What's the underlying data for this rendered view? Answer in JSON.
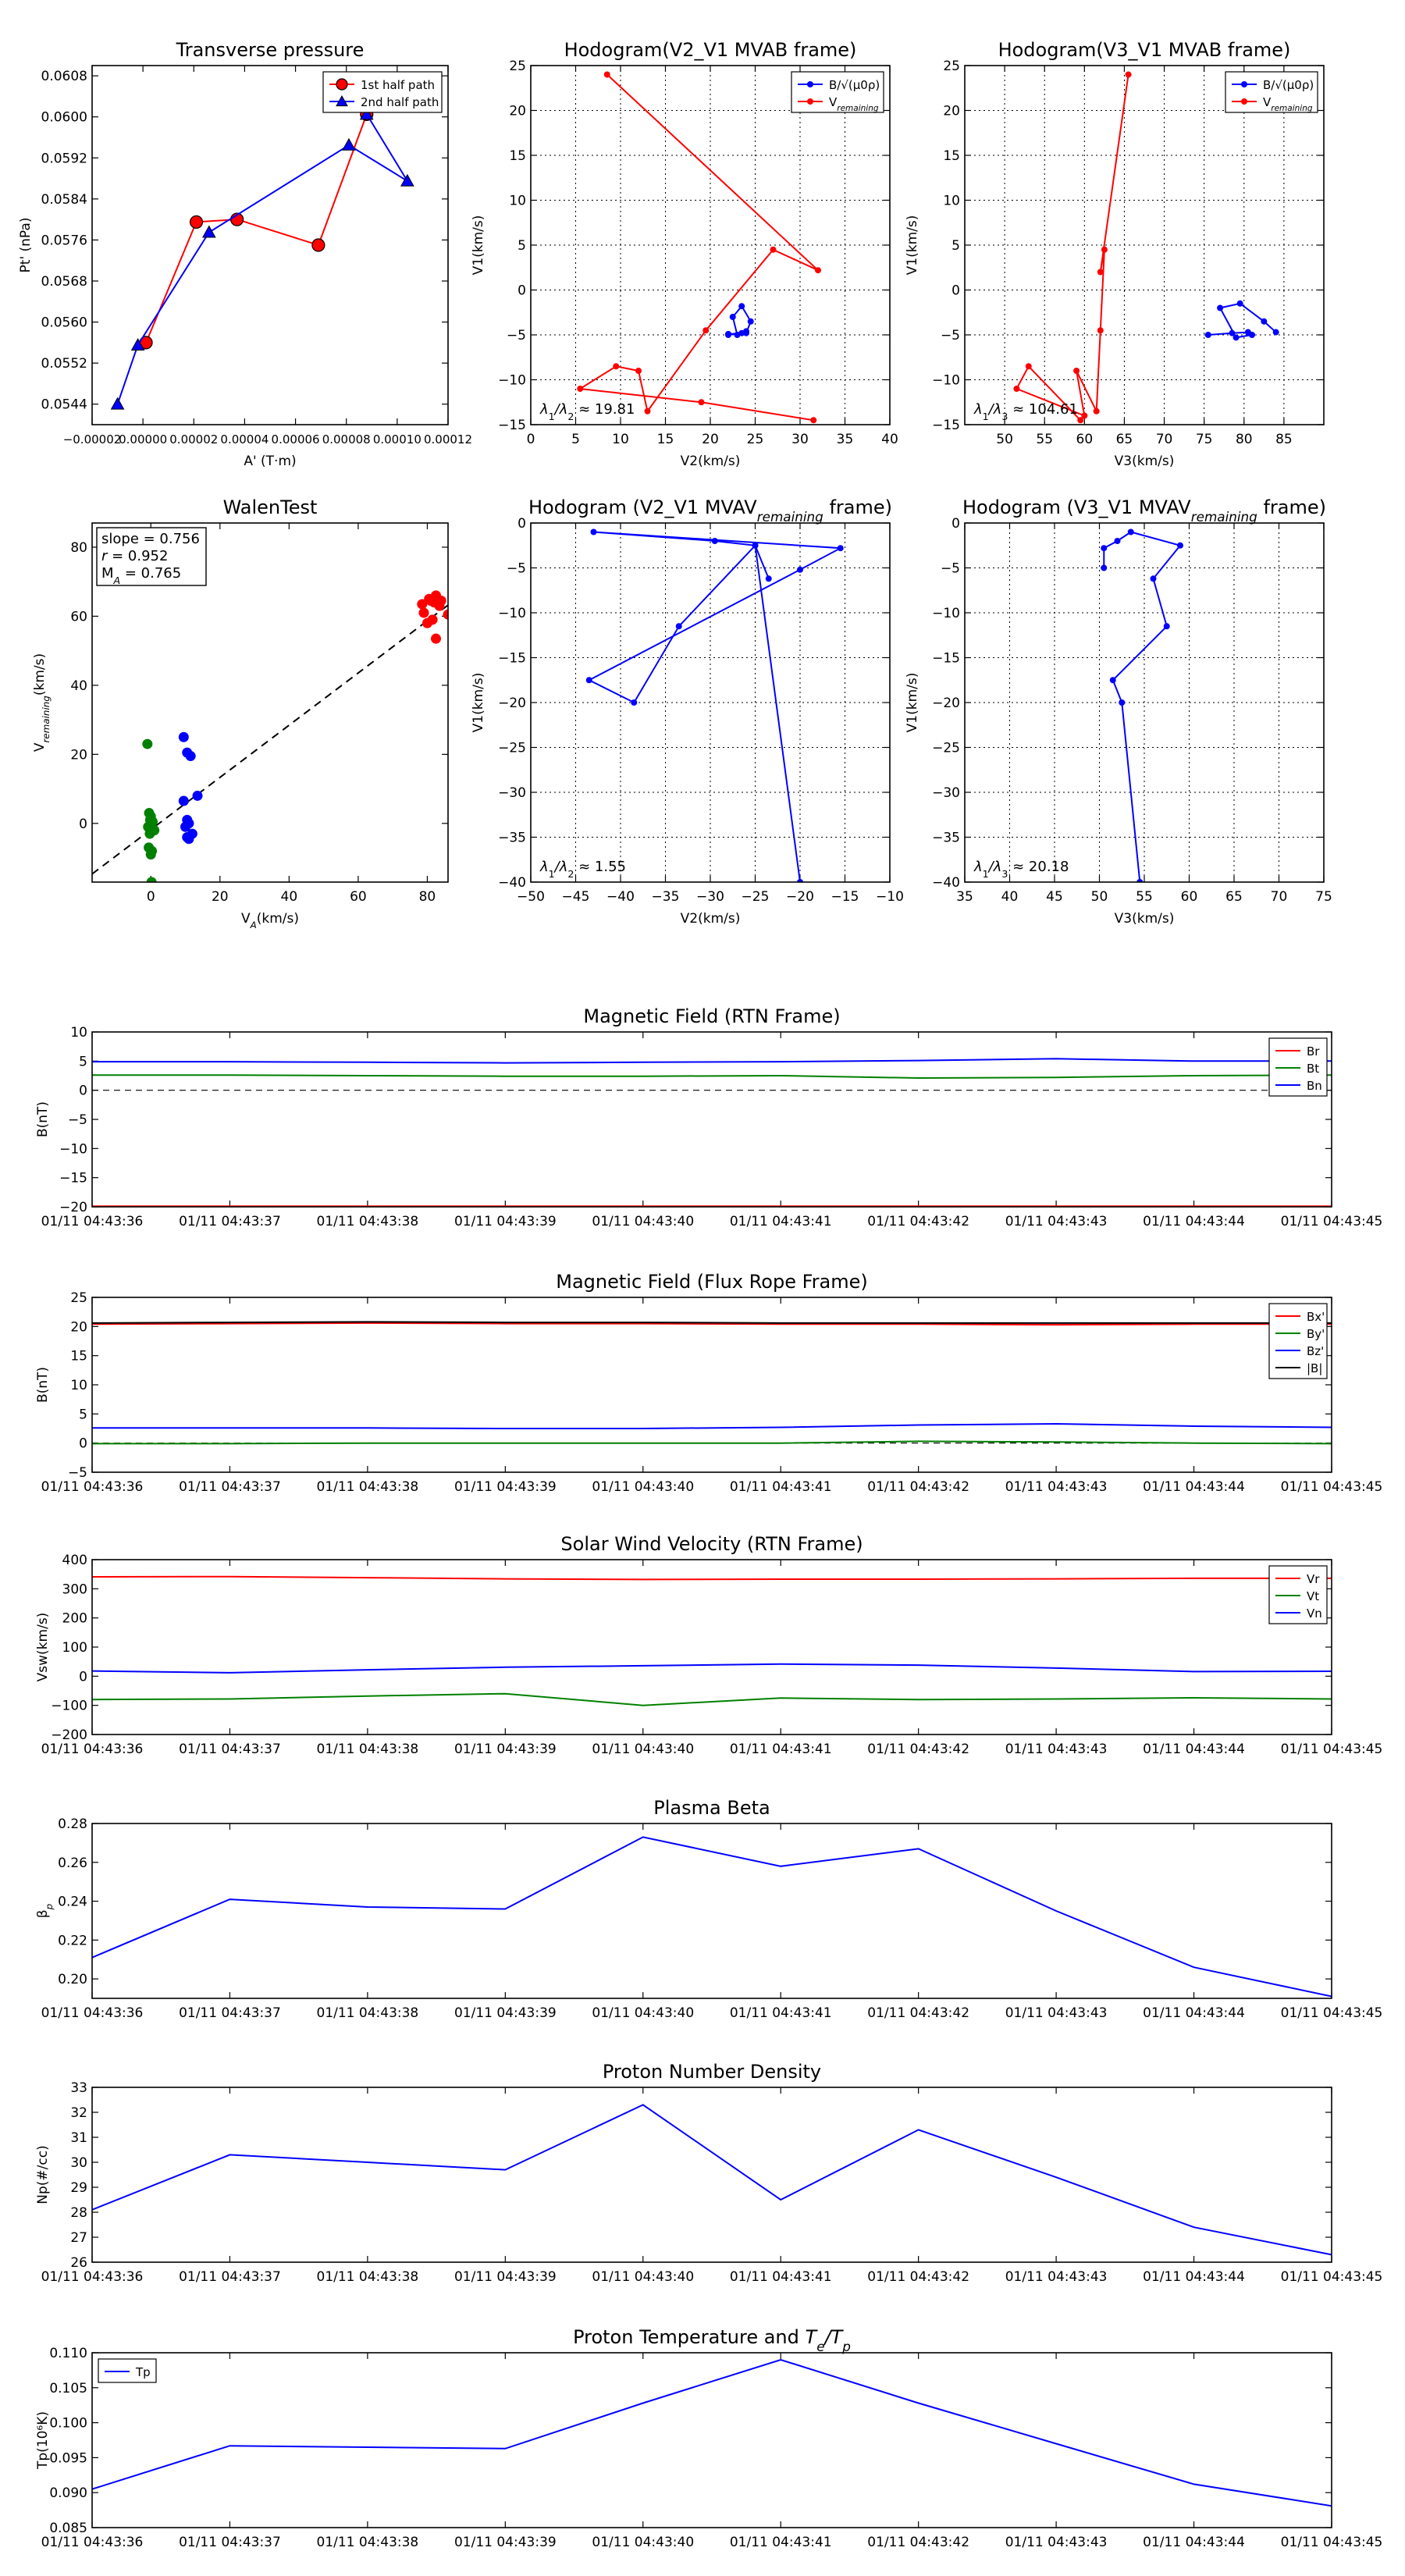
{
  "panel_labels": {
    "lambda12": "λ₁/λ₂ ≈",
    "lambda13": "λ₁/λ₃ ≈",
    "slope": "slope =",
    "r": "r =",
    "ma": "M_A ="
  },
  "time_labels": [
    "01/11 04:43:36",
    "01/11 04:43:37",
    "01/11 04:43:38",
    "01/11 04:43:39",
    "01/11 04:43:40",
    "01/11 04:43:41",
    "01/11 04:43:42",
    "01/11 04:43:43",
    "01/11 04:43:44",
    "01/11 04:43:45"
  ],
  "colors": {
    "red": "#ff0000",
    "green": "#008000",
    "blue": "#0000ff",
    "black": "#000000"
  },
  "chart_data": [
    {
      "id": "transverse_pressure",
      "type": "line",
      "title": "Transverse pressure",
      "xlabel": "A' (T·m)",
      "ylabel": "Pt' (nPa)",
      "xlim": [
        -2e-05,
        0.00012
      ],
      "ylim": [
        0.054,
        0.061
      ],
      "xticks": [
        -2e-05,
        0,
        2e-05,
        4e-05,
        6e-05,
        8e-05,
        0.0001,
        0.00012
      ],
      "xtick_labels": [
        "−0.00002",
        "0.00000",
        "0.00002",
        "0.00004",
        "0.00006",
        "0.00008",
        "0.00010",
        "0.00012"
      ],
      "yticks": [
        0.0544,
        0.0552,
        0.056,
        0.0568,
        0.0576,
        0.0584,
        0.0592,
        0.06,
        0.0608
      ],
      "ytick_labels": [
        "0.0544",
        "0.0552",
        "0.0560",
        "0.0568",
        "0.0576",
        "0.0584",
        "0.0592",
        "0.0600",
        "0.0608"
      ],
      "legend": "top-right",
      "series": [
        {
          "name": "1st half path",
          "color": "red",
          "marker": "circle",
          "x": [
            1.2e-06,
            2.1e-05,
            3.7e-05,
            6.9e-05,
            8.8e-05
          ],
          "y": [
            0.0556,
            0.05795,
            0.058,
            0.0575,
            0.06005
          ]
        },
        {
          "name": "2nd half path",
          "color": "blue",
          "marker": "triangle",
          "x": [
            8.8e-05,
            0.000104,
            8.1e-05,
            2.6e-05,
            -2e-06,
            -1e-05
          ],
          "y": [
            0.06005,
            0.05875,
            0.05945,
            0.05775,
            0.05555,
            0.0544
          ]
        }
      ]
    },
    {
      "id": "hodo_v2v1_mvab",
      "type": "line",
      "title": "Hodogram(V2_V1 MVAB frame)",
      "xlabel": "V2(km/s)",
      "ylabel": "V1(km/s)",
      "xlim": [
        0,
        40
      ],
      "ylim": [
        -15,
        25
      ],
      "xticks": [
        0,
        5,
        10,
        15,
        20,
        25,
        30,
        35,
        40
      ],
      "yticks": [
        -15,
        -10,
        -5,
        0,
        5,
        10,
        15,
        20,
        25
      ],
      "grid": true,
      "legend": "top-right",
      "annotation": {
        "label_key": "lambda12",
        "value": "19.81"
      },
      "series": [
        {
          "name": "B/√(μ0ρ)",
          "color": "blue",
          "x": [
            22.0,
            23.5,
            24.0,
            23.0,
            22.5,
            23.5,
            24.5,
            24.0,
            22.0
          ],
          "y": [
            -5.0,
            -4.8,
            -4.6,
            -5.0,
            -3.0,
            -1.8,
            -3.5,
            -4.8,
            -4.9
          ]
        },
        {
          "name": "V_remaining",
          "color": "red",
          "x": [
            8.5,
            32.0,
            27.0,
            19.5,
            13.0,
            12.0,
            9.5,
            5.5,
            19.0,
            31.5
          ],
          "y": [
            24.0,
            2.2,
            4.5,
            -4.5,
            -13.5,
            -9.0,
            -8.5,
            -11.0,
            -12.5,
            -14.5
          ]
        }
      ]
    },
    {
      "id": "hodo_v3v1_mvab",
      "type": "line",
      "title": "Hodogram(V3_V1 MVAB frame)",
      "xlabel": "V3(km/s)",
      "ylabel": "V1(km/s)",
      "xlim": [
        45,
        90
      ],
      "ylim": [
        -15,
        25
      ],
      "xticks": [
        50,
        55,
        60,
        65,
        70,
        75,
        80,
        85
      ],
      "yticks": [
        -15,
        -10,
        -5,
        0,
        5,
        10,
        15,
        20,
        25
      ],
      "grid": true,
      "legend": "top-right",
      "annotation": {
        "label_key": "lambda13",
        "value": "104.61"
      },
      "series": [
        {
          "name": "B/√(μ0ρ)",
          "color": "blue",
          "x": [
            75.5,
            78.5,
            80.5,
            81.0,
            79.0,
            77.0,
            79.5,
            82.5,
            84.0
          ],
          "y": [
            -5.0,
            -4.8,
            -4.7,
            -5.0,
            -5.3,
            -2.0,
            -1.5,
            -3.5,
            -4.7
          ]
        },
        {
          "name": "V_remaining",
          "color": "red",
          "x": [
            65.5,
            62.0,
            62.5,
            62.0,
            61.5,
            59.0,
            60.0,
            51.5,
            53.0,
            59.5
          ],
          "y": [
            24.0,
            2.0,
            4.5,
            -4.5,
            -13.5,
            -9.0,
            -14.0,
            -11.0,
            -8.5,
            -14.5
          ]
        }
      ]
    },
    {
      "id": "walen_test",
      "type": "scatter",
      "title": "WalenTest",
      "xlabel": "V_A(km/s)",
      "ylabel": "V_remaining(km/s)",
      "xlim": [
        -17,
        86
      ],
      "ylim": [
        -17,
        87
      ],
      "xticks": [
        0,
        20,
        40,
        60,
        80
      ],
      "yticks": [
        0,
        20,
        40,
        60,
        80
      ],
      "stats": {
        "slope": "0.756",
        "r": "0.952",
        "ma": "0.765"
      },
      "fit_line": {
        "slope": 0.756,
        "intercept": -1.8
      },
      "series": [
        {
          "name": "red",
          "color": "red",
          "x": [
            78.5,
            80.5,
            81.0,
            82.5,
            82.0,
            83.5,
            84.0,
            86.0,
            80.0,
            81.5,
            82.5,
            79.0
          ],
          "y": [
            63.5,
            65.0,
            64.5,
            66.0,
            64.0,
            63.0,
            64.5,
            60.5,
            58.0,
            59.0,
            53.5,
            61.0
          ]
        },
        {
          "name": "green",
          "color": "green",
          "x": [
            -1.0,
            -0.5,
            0.0,
            0.5,
            -0.8,
            1.0,
            -0.3,
            0.3,
            0.0,
            -0.6,
            0.5,
            -0.2,
            0.2
          ],
          "y": [
            23.0,
            3.0,
            2.0,
            0.5,
            -1.0,
            -2.0,
            -3.0,
            -8.0,
            -9.0,
            -7.0,
            -1.5,
            1.0,
            -17.0
          ]
        },
        {
          "name": "blue",
          "color": "blue",
          "x": [
            9.5,
            10.5,
            11.5,
            13.5,
            9.5,
            10.5,
            11.0,
            10.0,
            10.5,
            11.0,
            12.0
          ],
          "y": [
            25.0,
            20.5,
            19.5,
            8.0,
            6.5,
            1.0,
            0.0,
            -1.0,
            -4.0,
            -4.5,
            -3.0
          ]
        }
      ]
    },
    {
      "id": "hodo_v2v1_mvav",
      "type": "line",
      "title": "Hodogram (V2_V1 MVAV_remaining frame)",
      "xlabel": "V2(km/s)",
      "ylabel": "V1(km/s)",
      "xlim": [
        -50,
        -10
      ],
      "ylim": [
        -40,
        0
      ],
      "xticks": [
        -50,
        -45,
        -40,
        -35,
        -30,
        -25,
        -20,
        -15,
        -10
      ],
      "yticks": [
        -40,
        -35,
        -30,
        -25,
        -20,
        -15,
        -10,
        -5,
        0
      ],
      "grid": true,
      "annotation": {
        "label_key": "lambda12",
        "value": "1.55"
      },
      "series": [
        {
          "name": "V",
          "color": "blue",
          "x": [
            -23.5,
            -25.0,
            -29.5,
            -43.0,
            -15.5,
            -20.0,
            -43.5,
            -38.5,
            -33.5,
            -25.0,
            -20.0
          ],
          "y": [
            -6.2,
            -2.5,
            -2.0,
            -1.0,
            -2.8,
            -5.2,
            -17.5,
            -20.0,
            -11.5,
            -2.5,
            -40.0
          ]
        }
      ]
    },
    {
      "id": "hodo_v3v1_mvav",
      "type": "line",
      "title": "Hodogram (V3_V1 MVAV_remaining frame)",
      "xlabel": "V3(km/s)",
      "ylabel": "V1(km/s)",
      "xlim": [
        35,
        75
      ],
      "ylim": [
        -40,
        0
      ],
      "xticks": [
        35,
        40,
        45,
        50,
        55,
        60,
        65,
        70,
        75
      ],
      "yticks": [
        -40,
        -35,
        -30,
        -25,
        -20,
        -15,
        -10,
        -5,
        0
      ],
      "grid": true,
      "annotation": {
        "label_key": "lambda13",
        "value": "20.18"
      },
      "series": [
        {
          "name": "V",
          "color": "blue",
          "x": [
            50.5,
            50.5,
            52.0,
            53.5,
            59.0,
            56.0,
            57.5,
            51.5,
            52.5,
            54.5
          ],
          "y": [
            -5.0,
            -2.8,
            -2.0,
            -1.0,
            -2.5,
            -6.2,
            -11.5,
            -17.5,
            -20.0,
            -40.0
          ]
        }
      ]
    },
    {
      "id": "mag_rtn",
      "type": "line",
      "title": "Magnetic Field (RTN Frame)",
      "ylabel": "B(nT)",
      "ylim": [
        -20,
        10
      ],
      "yticks": [
        -20,
        -15,
        -10,
        -5,
        0,
        5,
        10
      ],
      "zero_line": true,
      "legend": "top-right",
      "x": [
        0,
        1,
        2,
        3,
        4,
        5,
        6,
        7,
        8,
        9
      ],
      "series": [
        {
          "name": "Br",
          "color": "red",
          "values": [
            -19.9,
            -19.9,
            -19.9,
            -19.9,
            -19.9,
            -19.9,
            -19.9,
            -19.9,
            -19.9,
            -19.9
          ]
        },
        {
          "name": "Bt",
          "color": "green",
          "values": [
            2.6,
            2.6,
            2.5,
            2.4,
            2.4,
            2.5,
            2.1,
            2.2,
            2.5,
            2.6
          ]
        },
        {
          "name": "Bn",
          "color": "blue",
          "values": [
            4.9,
            4.9,
            4.8,
            4.7,
            4.8,
            4.9,
            5.1,
            5.4,
            5.0,
            5.0
          ]
        }
      ]
    },
    {
      "id": "mag_fr",
      "type": "line",
      "title": "Magnetic Field (Flux Rope Frame)",
      "ylabel": "B(nT)",
      "ylim": [
        -5,
        25
      ],
      "yticks": [
        -5,
        0,
        5,
        10,
        15,
        20,
        25
      ],
      "zero_line": true,
      "legend": "top-right",
      "x": [
        0,
        1,
        2,
        3,
        4,
        5,
        6,
        7,
        8,
        9
      ],
      "series": [
        {
          "name": "Bx'",
          "color": "red",
          "values": [
            20.4,
            20.5,
            20.6,
            20.5,
            20.5,
            20.4,
            20.4,
            20.3,
            20.4,
            20.4
          ]
        },
        {
          "name": "By'",
          "color": "green",
          "values": [
            -0.1,
            -0.1,
            0.0,
            0.0,
            0.0,
            0.0,
            0.3,
            0.2,
            0.0,
            -0.1
          ]
        },
        {
          "name": "Bz'",
          "color": "blue",
          "values": [
            2.6,
            2.6,
            2.6,
            2.5,
            2.5,
            2.7,
            3.1,
            3.3,
            2.9,
            2.7
          ]
        },
        {
          "name": "|B|",
          "color": "black",
          "values": [
            20.6,
            20.7,
            20.8,
            20.7,
            20.7,
            20.6,
            20.6,
            20.6,
            20.6,
            20.6
          ]
        }
      ]
    },
    {
      "id": "sw_vel",
      "type": "line",
      "title": "Solar Wind Velocity (RTN Frame)",
      "ylabel": "Vsw(km/s)",
      "ylim": [
        -200,
        400
      ],
      "yticks": [
        -200,
        -100,
        0,
        100,
        200,
        300,
        400
      ],
      "legend": "top-right",
      "x": [
        0,
        1,
        2,
        3,
        4,
        5,
        6,
        7,
        8,
        9
      ],
      "series": [
        {
          "name": "Vr",
          "color": "red",
          "values": [
            341,
            342,
            338,
            334,
            332,
            333,
            333,
            334,
            336,
            336
          ]
        },
        {
          "name": "Vt",
          "color": "green",
          "values": [
            -80,
            -78,
            -68,
            -60,
            -100,
            -75,
            -80,
            -78,
            -74,
            -78
          ]
        },
        {
          "name": "Vn",
          "color": "blue",
          "values": [
            18,
            12,
            22,
            31,
            36,
            42,
            38,
            28,
            16,
            17
          ]
        }
      ]
    },
    {
      "id": "plasma_beta",
      "type": "line",
      "title": "Plasma Beta",
      "ylabel": "β_p",
      "ylim": [
        0.19,
        0.28
      ],
      "yticks": [
        0.2,
        0.22,
        0.24,
        0.26,
        0.28
      ],
      "ytick_labels": [
        "0.20",
        "0.22",
        "0.24",
        "0.26",
        "0.28"
      ],
      "x": [
        0,
        1,
        2,
        3,
        4,
        5,
        6,
        7,
        8,
        9
      ],
      "series": [
        {
          "name": "beta",
          "color": "blue",
          "values": [
            0.211,
            0.241,
            0.237,
            0.236,
            0.273,
            0.258,
            0.267,
            0.235,
            0.206,
            0.191
          ]
        }
      ]
    },
    {
      "id": "proton_density",
      "type": "line",
      "title": "Proton Number Density",
      "ylabel": "Np(#/cc)",
      "ylim": [
        26,
        33
      ],
      "yticks": [
        26,
        27,
        28,
        29,
        30,
        31,
        32,
        33
      ],
      "x": [
        0,
        1,
        2,
        3,
        4,
        5,
        6,
        7,
        8,
        9
      ],
      "series": [
        {
          "name": "Np",
          "color": "blue",
          "values": [
            28.1,
            30.3,
            30.0,
            29.7,
            32.3,
            28.5,
            31.3,
            29.4,
            27.4,
            26.3
          ]
        }
      ]
    },
    {
      "id": "proton_temp",
      "type": "line",
      "title": "Proton Temperature and Te/Tp",
      "ylabel": "Tp(10⁶K)",
      "ylim": [
        0.085,
        0.11
      ],
      "yticks": [
        0.085,
        0.09,
        0.095,
        0.1,
        0.105,
        0.11
      ],
      "ytick_labels": [
        "0.085",
        "0.090",
        "0.095",
        "0.100",
        "0.105",
        "0.110"
      ],
      "legend": "top-left",
      "x": [
        0,
        1,
        2,
        3,
        4,
        5,
        6,
        7,
        8,
        9
      ],
      "series": [
        {
          "name": "Tp",
          "color": "blue",
          "values": [
            0.0905,
            0.0967,
            0.0965,
            0.0963,
            0.1028,
            0.109,
            0.1028,
            0.097,
            0.0912,
            0.0881
          ]
        }
      ]
    }
  ]
}
